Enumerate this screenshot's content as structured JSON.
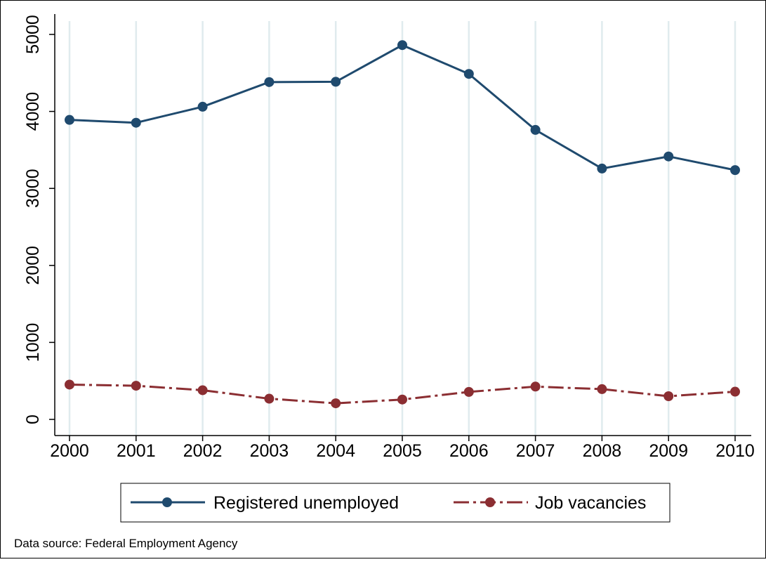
{
  "chart_data": {
    "type": "line",
    "title": "",
    "xlabel": "",
    "ylabel": "",
    "categories": [
      "2000",
      "2001",
      "2002",
      "2003",
      "2004",
      "2005",
      "2006",
      "2007",
      "2008",
      "2009",
      "2010"
    ],
    "ylim": [
      0,
      5000
    ],
    "yticks": [
      "0",
      "1000",
      "2000",
      "3000",
      "4000",
      "5000"
    ],
    "grid": "vertical",
    "legend": "bottom",
    "series": [
      {
        "name": "Registered unemployed",
        "color": "#1f4a6e",
        "style": "solid",
        "marker": "circle",
        "values": [
          3890,
          3853,
          4061,
          4381,
          4385,
          4861,
          4487,
          3760,
          3258,
          3415,
          3238
        ]
      },
      {
        "name": "Job vacancies",
        "color": "#8b2e32",
        "style": "dash-dot",
        "marker": "circle",
        "values": [
          452,
          437,
          379,
          269,
          209,
          258,
          357,
          426,
          393,
          301,
          360
        ]
      }
    ],
    "note": "Data source: Federal Employment Agency"
  },
  "colors": {
    "gridline": "#e0ebee",
    "axis": "#000000",
    "background": "#ffffff"
  }
}
